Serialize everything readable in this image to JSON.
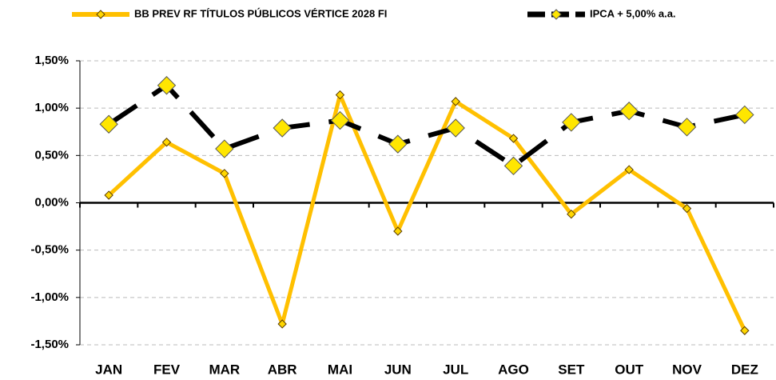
{
  "chart_data": {
    "type": "line",
    "categories": [
      "JAN",
      "FEV",
      "MAR",
      "ABR",
      "MAI",
      "JUN",
      "JUL",
      "AGO",
      "SET",
      "OUT",
      "NOV",
      "DEZ"
    ],
    "series": [
      {
        "name": "BB PREV RF TÍTULOS PÚBLICOS VÉRTICE 2028 FI",
        "color": "#ffc000",
        "values": [
          0.08,
          0.64,
          0.31,
          -1.28,
          1.14,
          -0.3,
          1.07,
          0.68,
          -0.12,
          0.35,
          -0.06,
          -1.35
        ]
      },
      {
        "name": "IPCA + 5,00% a.a.",
        "color": "#000000",
        "values": [
          0.83,
          1.24,
          0.57,
          0.79,
          0.87,
          0.62,
          0.79,
          0.39,
          0.85,
          0.97,
          0.8,
          0.93
        ]
      }
    ],
    "ylim": [
      -1.5,
      1.5
    ],
    "yticks": [
      {
        "value": -1.5,
        "label": "-1,50%"
      },
      {
        "value": -1.0,
        "label": "-1,00%"
      },
      {
        "value": -0.5,
        "label": "-0,50%"
      },
      {
        "value": 0,
        "label": "0,00%"
      },
      {
        "value": 0.5,
        "label": "0,50%"
      },
      {
        "value": 1.0,
        "label": "1,00%"
      },
      {
        "value": 1.5,
        "label": "1,50%"
      }
    ],
    "grid": true,
    "legend": "top"
  }
}
